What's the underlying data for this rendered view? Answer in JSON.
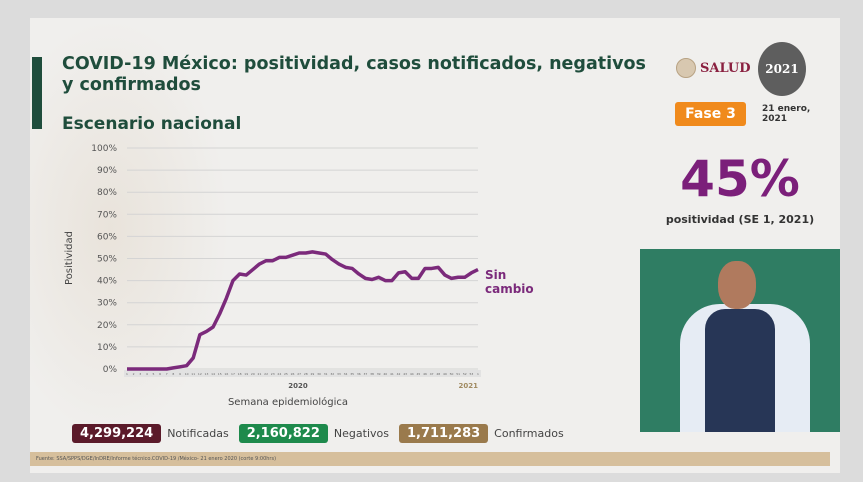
{
  "header": {
    "title": "COVID-19 México: positividad, casos notificados, negativos y confirmados",
    "subtitle": "Escenario nacional"
  },
  "logos": {
    "salud": "SALUD",
    "emblem": "2021"
  },
  "phase": {
    "label": "Fase 3",
    "color": "#f08a1c"
  },
  "date": "21 enero, 2021",
  "highlight": {
    "value": "45%",
    "caption": "positividad (SE 1, 2021)",
    "color": "#7b1f7a"
  },
  "stats": [
    {
      "value": "4,299,224",
      "label": "Notificadas",
      "color": "#5b1a2a"
    },
    {
      "value": "2,160,822",
      "label": "Negativos",
      "color": "#1e8a4c"
    },
    {
      "value": "1,711,283",
      "label": "Confirmados",
      "color": "#9a7a4c"
    }
  ],
  "source": "Fuente: SSA/SPPS/DGE/InDRE/Informe técnico.COVID-19 /México- 21 enero 2020 (corte 9:00hrs)",
  "chart_data": {
    "type": "line",
    "xlabel": "Semana epidemiológica",
    "ylabel": "Positividad",
    "ylim": [
      0,
      100
    ],
    "yticks": [
      "0%",
      "10%",
      "20%",
      "30%",
      "40%",
      "50%",
      "60%",
      "70%",
      "80%",
      "90%",
      "100%"
    ],
    "year_labels": [
      "2020",
      "2021"
    ],
    "grid": true,
    "annotation": "Sin cambio",
    "color": "#7b2a7b",
    "x": [
      "1",
      "2",
      "3",
      "4",
      "5",
      "6",
      "7",
      "8",
      "9",
      "10",
      "11",
      "12",
      "13",
      "14",
      "15",
      "16",
      "17",
      "18",
      "19",
      "20",
      "21",
      "22",
      "23",
      "24",
      "25",
      "26",
      "27",
      "28",
      "29",
      "30",
      "31",
      "32",
      "33",
      "34",
      "35",
      "36",
      "37",
      "38",
      "39",
      "40",
      "41",
      "42",
      "43",
      "44",
      "45",
      "46",
      "47",
      "48",
      "49",
      "50",
      "51",
      "52",
      "53",
      "1"
    ],
    "values": [
      0,
      0,
      0,
      0,
      0,
      0,
      0,
      0.5,
      1,
      1.5,
      5,
      15.5,
      17,
      19,
      25,
      32,
      40,
      43,
      42.5,
      45,
      47.5,
      49,
      49,
      50.5,
      50.5,
      51.5,
      52.5,
      52.5,
      53,
      52.5,
      52,
      49.5,
      47.5,
      46,
      45.5,
      43,
      41,
      40.5,
      41.5,
      40,
      40,
      43.5,
      44,
      41,
      41,
      45.5,
      45.5,
      46,
      42.5,
      41,
      41.5,
      41.5,
      43.5,
      45
    ]
  }
}
